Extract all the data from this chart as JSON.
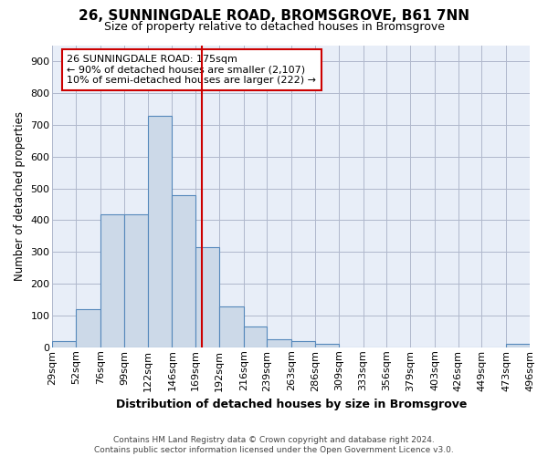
{
  "title": "26, SUNNINGDALE ROAD, BROMSGROVE, B61 7NN",
  "subtitle": "Size of property relative to detached houses in Bromsgrove",
  "xlabel": "Distribution of detached houses by size in Bromsgrove",
  "ylabel": "Number of detached properties",
  "bar_values": [
    20,
    120,
    420,
    420,
    730,
    480,
    315,
    130,
    65,
    25,
    20,
    10,
    0,
    0,
    0,
    0,
    0,
    0,
    0,
    10
  ],
  "bin_edges": [
    29,
    52,
    76,
    99,
    122,
    146,
    169,
    192,
    216,
    239,
    263,
    286,
    309,
    333,
    356,
    379,
    403,
    426,
    449,
    473,
    496
  ],
  "x_tick_labels": [
    "29sqm",
    "52sqm",
    "76sqm",
    "99sqm",
    "122sqm",
    "146sqm",
    "169sqm",
    "192sqm",
    "216sqm",
    "239sqm",
    "263sqm",
    "286sqm",
    "309sqm",
    "333sqm",
    "356sqm",
    "379sqm",
    "403sqm",
    "426sqm",
    "449sqm",
    "473sqm",
    "496sqm"
  ],
  "bar_color": "#ccd9e8",
  "bar_edgecolor": "#5588bb",
  "vline_x": 175,
  "vline_color": "#cc0000",
  "ylim": [
    0,
    950
  ],
  "yticks": [
    0,
    100,
    200,
    300,
    400,
    500,
    600,
    700,
    800,
    900
  ],
  "annotation_lines": [
    "26 SUNNINGDALE ROAD: 175sqm",
    "← 90% of detached houses are smaller (2,107)",
    "10% of semi-detached houses are larger (222) →"
  ],
  "annotation_box_color": "#cc0000",
  "footer_line1": "Contains HM Land Registry data © Crown copyright and database right 2024.",
  "footer_line2": "Contains public sector information licensed under the Open Government Licence v3.0.",
  "bg_color": "#e8eef8",
  "grid_color": "#b0b8cc"
}
